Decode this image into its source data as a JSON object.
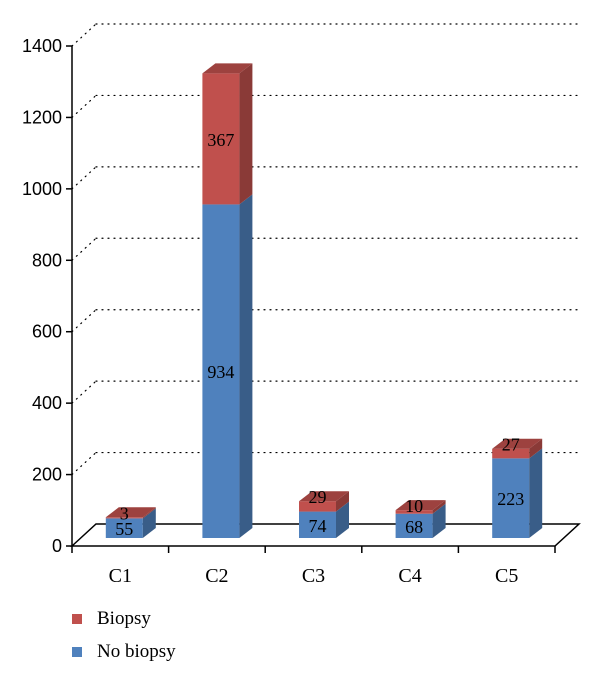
{
  "chart_data": {
    "type": "bar",
    "stacked": true,
    "three_d": true,
    "categories": [
      "C1",
      "C2",
      "C3",
      "C4",
      "C5"
    ],
    "series": [
      {
        "name": "No biopsy",
        "values": [
          55,
          934,
          74,
          68,
          223
        ],
        "color": "#4f81bd"
      },
      {
        "name": "Biopsy",
        "values": [
          3,
          367,
          29,
          10,
          27
        ],
        "color": "#c0504d"
      }
    ],
    "ylim": [
      0,
      1400
    ],
    "yticks": [
      0,
      200,
      400,
      600,
      800,
      1000,
      1200,
      1400
    ],
    "grid": true,
    "legend_position": "bottom-left",
    "legend": [
      {
        "label": "Biopsy",
        "color": "#c0504d"
      },
      {
        "label": "No biopsy",
        "color": "#4f81bd"
      }
    ]
  }
}
